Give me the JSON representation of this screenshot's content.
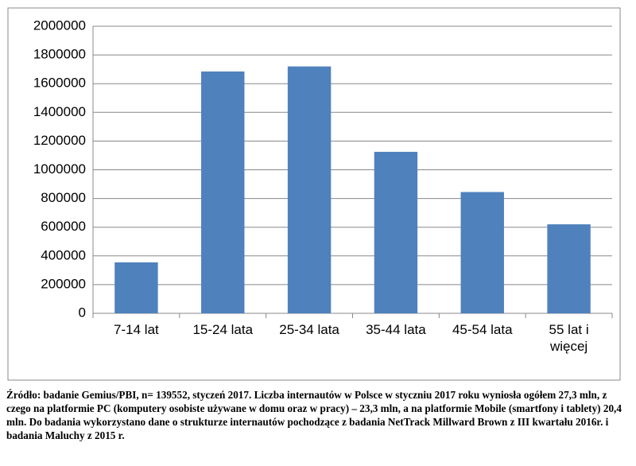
{
  "chart_data": {
    "type": "bar",
    "categories": [
      "7-14 lat",
      "15-24 lata",
      "25-34 lata",
      "35-44 lata",
      "45-54 lata",
      "55 lat i więcej"
    ],
    "values": [
      355000,
      1685000,
      1720000,
      1125000,
      845000,
      620000
    ],
    "color": "#4f81bd",
    "ylim": [
      0,
      2000000
    ],
    "yticks": [
      0,
      200000,
      400000,
      600000,
      800000,
      1000000,
      1200000,
      1400000,
      1600000,
      1800000,
      2000000
    ],
    "grid": true
  },
  "caption": "Źródło: badanie Gemius/PBI, n= 139552, styczeń 2017. Liczba internautów w Polsce w styczniu 2017 roku wyniosła ogółem 27,3 mln, z czego na platformie PC (komputery osobiste używane w domu oraz w pracy) – 23,3 mln, a na platformie Mobile (smartfony i tablety) 20,4 mln. Do badania wykorzystano dane o strukturze internautów pochodzące z badania NetTrack Millward Brown z III kwartału 2016r. i badania Maluchy z 2015 r."
}
